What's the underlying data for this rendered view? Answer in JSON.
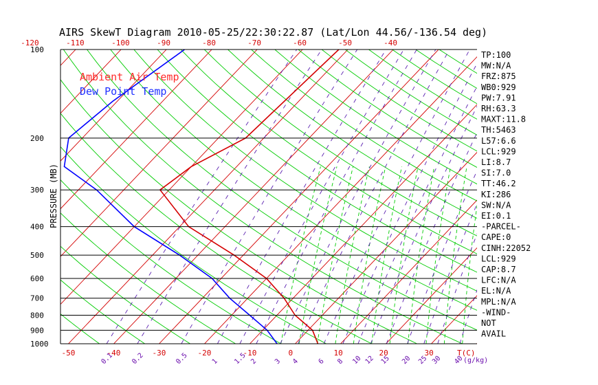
{
  "title": "AIRS SkewT Diagram 2010-05-25/22:30:22.87 (Lat/Lon 44.56/-136.54 deg)",
  "ylabel": "PRESSURE (MB)",
  "colors": {
    "air": "#d40000",
    "dew": "#0000ff",
    "dry": "#d40000",
    "moist": "#00cc00",
    "mix": "#5a1fb0",
    "isobar": "#000000"
  },
  "legend": {
    "air": "Ambient Air Temp",
    "dew": "Dew Point Temp"
  },
  "chart_data": {
    "type": "line",
    "title": "AIRS SkewT Diagram 2010-05-25/22:30:22.87 (Lat/Lon 44.56/-136.54 deg)",
    "ylabel": "PRESSURE (MB)",
    "y_scale": "log",
    "ylim": [
      1000,
      100
    ],
    "pressure_ticks": [
      100,
      200,
      300,
      400,
      500,
      600,
      700,
      800,
      900,
      1000
    ],
    "top_ticks": [
      "-120",
      "-110",
      "-100",
      "-90",
      "-80",
      "-70",
      "-60",
      "-50",
      "-40"
    ],
    "bottom_ticks": [
      "-50",
      "-40",
      "-30",
      "-20",
      "-10",
      "0",
      "10",
      "20",
      "30"
    ],
    "bottom_unit": "T(C)",
    "mixing_ratio_ticks": [
      "0.1",
      "0.2",
      "0.5",
      "1",
      "1.5",
      "2",
      "3",
      "4",
      "6",
      "8",
      "10",
      "12",
      "15",
      "20",
      "25",
      "30",
      "40"
    ],
    "mixing_unit": "(g/kg)",
    "series": [
      {
        "name": "Ambient Air Temp",
        "points": [
          [
            100,
            -52
          ],
          [
            200,
            -54
          ],
          [
            250,
            -60
          ],
          [
            300,
            -62
          ],
          [
            400,
            -48
          ],
          [
            500,
            -32
          ],
          [
            600,
            -20
          ],
          [
            700,
            -12
          ],
          [
            800,
            -6
          ],
          [
            900,
            1
          ],
          [
            1000,
            5
          ]
        ]
      },
      {
        "name": "Dew Point Temp",
        "points": [
          [
            100,
            -86
          ],
          [
            150,
            -91
          ],
          [
            200,
            -93
          ],
          [
            250,
            -88
          ],
          [
            300,
            -76
          ],
          [
            400,
            -60
          ],
          [
            500,
            -44
          ],
          [
            600,
            -32
          ],
          [
            700,
            -24
          ],
          [
            800,
            -16
          ],
          [
            900,
            -9
          ],
          [
            1000,
            -4
          ]
        ]
      }
    ]
  },
  "indices": [
    "TP:100",
    "MW:N/A",
    "FRZ:875",
    "WB0:929",
    "PW:7.91",
    "RH:63.3",
    "MAXT:11.8",
    "TH:5463",
    "L57:6.6",
    "LCL:929",
    "LI:8.7",
    "SI:7.0",
    "TT:46.2",
    "KI:286",
    "SW:N/A",
    "EI:0.1",
    "-PARCEL-",
    "CAPE:0",
    "CINH:22052",
    "LCL:929",
    "CAP:8.7",
    "LFC:N/A",
    "EL:N/A",
    "MPL:N/A",
    "-WIND-",
    "NOT",
    "AVAIL"
  ]
}
